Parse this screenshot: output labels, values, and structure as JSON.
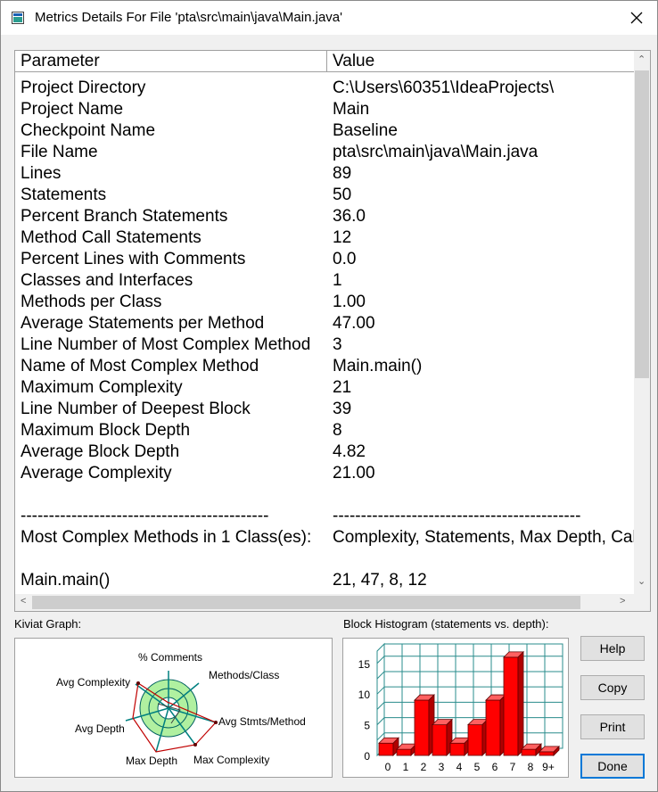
{
  "window": {
    "title": "Metrics Details For File 'pta\\src\\main\\java\\Main.java'"
  },
  "table": {
    "headers": [
      "Parameter",
      "Value"
    ],
    "rows": [
      [
        "Project Directory",
        "C:\\Users\\60351\\IdeaProjects\\"
      ],
      [
        "Project Name",
        "Main"
      ],
      [
        "Checkpoint Name",
        "Baseline"
      ],
      [
        "File Name",
        "pta\\src\\main\\java\\Main.java"
      ],
      [
        "Lines",
        "89"
      ],
      [
        "Statements",
        "50"
      ],
      [
        "Percent Branch Statements",
        "36.0"
      ],
      [
        "Method Call Statements",
        "12"
      ],
      [
        "Percent Lines with Comments",
        "0.0"
      ],
      [
        "Classes and Interfaces",
        "1"
      ],
      [
        "Methods per Class",
        "1.00"
      ],
      [
        "Average Statements per Method",
        "47.00"
      ],
      [
        "Line Number of Most Complex Method",
        "3"
      ],
      [
        "Name of Most Complex Method",
        "Main.main()"
      ],
      [
        "Maximum Complexity",
        "21"
      ],
      [
        "Line Number of Deepest Block",
        "39"
      ],
      [
        "Maximum Block Depth",
        "8"
      ],
      [
        "Average Block Depth",
        "4.82"
      ],
      [
        "Average Complexity",
        "21.00"
      ],
      [
        "",
        ""
      ],
      [
        "--------------------------------------------",
        "--------------------------------------------"
      ],
      [
        "Most Complex Methods in 1 Class(es):",
        "Complexity, Statements, Max Depth, Calls"
      ],
      [
        "",
        ""
      ],
      [
        "Main.main()",
        "21, 47, 8, 12"
      ]
    ]
  },
  "kiviat": {
    "label": "Kiviat Graph:",
    "axes": [
      "% Comments",
      "Methods/Class",
      "Avg Stmts/Method",
      "Max Complexity",
      "Max Depth",
      "Avg Depth",
      "Avg Complexity"
    ]
  },
  "histogram": {
    "label": "Block Histogram (statements vs. depth):"
  },
  "chart_data": {
    "type": "bar",
    "title": "Block Histogram (statements vs. depth):",
    "categories": [
      "0",
      "1",
      "2",
      "3",
      "4",
      "5",
      "6",
      "7",
      "8",
      "9+"
    ],
    "values": [
      2,
      1,
      9,
      5,
      2,
      5,
      9,
      16,
      1,
      0
    ],
    "ylim": [
      0,
      17
    ],
    "yticks": [
      "0",
      "5",
      "10",
      "15"
    ],
    "grid": true,
    "colors": {
      "bar": "#ff0000",
      "grid": "#2a8c8c"
    }
  },
  "buttons": {
    "help": "Help",
    "copy": "Copy",
    "print": "Print",
    "done": "Done"
  },
  "colors": {
    "kiviat_fill": "#b0f0a0",
    "kiviat_outline": "#c00000",
    "axis": "#008080"
  }
}
